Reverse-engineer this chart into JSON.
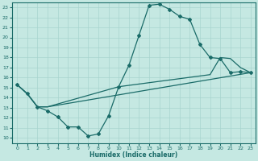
{
  "xlabel": "Humidex (Indice chaleur)",
  "xlim": [
    -0.5,
    23.5
  ],
  "ylim": [
    9.5,
    23.5
  ],
  "yticks": [
    10,
    11,
    12,
    13,
    14,
    15,
    16,
    17,
    18,
    19,
    20,
    21,
    22,
    23
  ],
  "xticks": [
    0,
    1,
    2,
    3,
    4,
    5,
    6,
    7,
    8,
    9,
    10,
    11,
    12,
    13,
    14,
    15,
    16,
    17,
    18,
    19,
    20,
    21,
    22,
    23
  ],
  "bg_color": "#c5e8e2",
  "line_color": "#1a6b68",
  "grid_color": "#a8d4ce",
  "zigzag_x": [
    0,
    1,
    2,
    3,
    4,
    5,
    6,
    7,
    8,
    9,
    10,
    11,
    12,
    13,
    14,
    15,
    16,
    17,
    18,
    19,
    20,
    21,
    22,
    23
  ],
  "zigzag_y": [
    15.3,
    14.4,
    13.1,
    12.7,
    12.1,
    11.1,
    11.1,
    10.2,
    10.4,
    12.2,
    15.1,
    17.2,
    20.2,
    23.2,
    23.3,
    22.8,
    22.1,
    21.8,
    19.3,
    18.0,
    17.9,
    16.5,
    16.6,
    16.5
  ],
  "upper_x": [
    0,
    1,
    2,
    3,
    10,
    19,
    20,
    21,
    22,
    23
  ],
  "upper_y": [
    15.3,
    14.4,
    13.1,
    13.1,
    15.1,
    16.3,
    18.0,
    17.9,
    17.0,
    16.5
  ],
  "lower_x": [
    0,
    1,
    2,
    3,
    23
  ],
  "lower_y": [
    15.3,
    14.4,
    13.1,
    13.1,
    16.5
  ]
}
